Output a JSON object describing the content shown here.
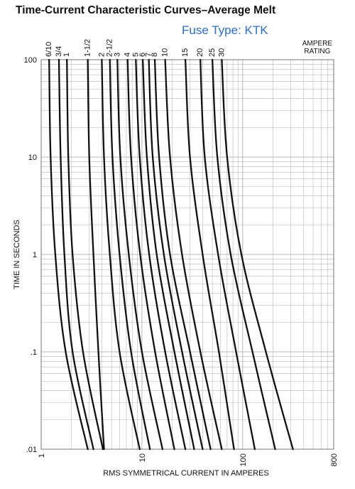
{
  "header": {
    "title": "Time-Current Characteristic Curves–Average Melt",
    "subtitle": "Fuse Type: KTK",
    "rating_line1": "AMPERE",
    "rating_line2": "RATING"
  },
  "chart_data": {
    "type": "line",
    "title": "Time-Current Characteristic Curves–Average Melt",
    "subtitle": "Fuse Type: KTK",
    "xlabel": "RMS SYMMETRICAL CURRENT IN AMPERES",
    "ylabel": "TIME IN SECONDS",
    "xscale": "log",
    "yscale": "log",
    "xlim": [
      1,
      800
    ],
    "ylim": [
      0.01,
      100
    ],
    "x_ticks": [
      {
        "value": 1,
        "label": "1"
      },
      {
        "value": 10,
        "label": "10"
      },
      {
        "value": 100,
        "label": "100"
      },
      {
        "value": 800,
        "label": "800"
      }
    ],
    "y_ticks": [
      {
        "value": 100,
        "label": "100"
      },
      {
        "value": 10,
        "label": "10"
      },
      {
        "value": 1,
        "label": "1"
      },
      {
        "value": 0.1,
        "label": ".1"
      },
      {
        "value": 0.01,
        "label": ".01"
      }
    ],
    "grid": true,
    "legend": "top (ampere rating labels above curves)",
    "line_color": "#111111",
    "grid_color": "#b8b8b8",
    "series": [
      {
        "name": "6/10",
        "points": [
          [
            1.2,
            100
          ],
          [
            1.24,
            10
          ],
          [
            1.38,
            1
          ],
          [
            1.75,
            0.1
          ],
          [
            2.9,
            0.01
          ]
        ]
      },
      {
        "name": "3/4",
        "points": [
          [
            1.5,
            100
          ],
          [
            1.56,
            10
          ],
          [
            1.7,
            1
          ],
          [
            2.05,
            0.1
          ],
          [
            3.3,
            0.01
          ]
        ]
      },
      {
        "name": "1",
        "points": [
          [
            1.8,
            100
          ],
          [
            1.86,
            10
          ],
          [
            2.05,
            1
          ],
          [
            2.6,
            0.1
          ],
          [
            4.1,
            0.01
          ]
        ]
      },
      {
        "name": "1-1/2",
        "points": [
          [
            2.9,
            100
          ],
          [
            3.0,
            10
          ],
          [
            3.3,
            1
          ],
          [
            3.7,
            0.1
          ],
          [
            4.2,
            0.01
          ]
        ]
      },
      {
        "name": "2",
        "points": [
          [
            4.0,
            100
          ],
          [
            4.2,
            10
          ],
          [
            4.8,
            1
          ],
          [
            6.0,
            0.1
          ],
          [
            9.5,
            0.01
          ]
        ]
      },
      {
        "name": "2-1/2",
        "points": [
          [
            4.8,
            100
          ],
          [
            5.1,
            10
          ],
          [
            6.0,
            1
          ],
          [
            7.8,
            0.1
          ],
          [
            12.0,
            0.01
          ]
        ]
      },
      {
        "name": "3",
        "points": [
          [
            5.7,
            100
          ],
          [
            6.1,
            10
          ],
          [
            7.4,
            1
          ],
          [
            10.0,
            0.1
          ],
          [
            16.0,
            0.01
          ]
        ]
      },
      {
        "name": "4",
        "points": [
          [
            7.2,
            100
          ],
          [
            7.8,
            10
          ],
          [
            9.6,
            1
          ],
          [
            13.5,
            0.1
          ],
          [
            21.0,
            0.01
          ]
        ]
      },
      {
        "name": "5",
        "points": [
          [
            8.7,
            100
          ],
          [
            9.5,
            10
          ],
          [
            11.8,
            1
          ],
          [
            17.0,
            0.1
          ],
          [
            27.0,
            0.01
          ]
        ]
      },
      {
        "name": "6",
        "points": [
          [
            10.2,
            100
          ],
          [
            11.2,
            10
          ],
          [
            14.0,
            1
          ],
          [
            21.0,
            0.1
          ],
          [
            33.0,
            0.01
          ]
        ]
      },
      {
        "name": "7",
        "points": [
          [
            11.7,
            100
          ],
          [
            12.8,
            10
          ],
          [
            16.5,
            1
          ],
          [
            25.0,
            0.1
          ],
          [
            40.0,
            0.01
          ]
        ]
      },
      {
        "name": "8",
        "points": [
          [
            13.4,
            100
          ],
          [
            14.8,
            10
          ],
          [
            19.0,
            1
          ],
          [
            30.0,
            0.1
          ],
          [
            48.0,
            0.01
          ]
        ]
      },
      {
        "name": "10",
        "points": [
          [
            17.0,
            100
          ],
          [
            19.0,
            10
          ],
          [
            25.0,
            1
          ],
          [
            38.0,
            0.1
          ],
          [
            62.0,
            0.01
          ]
        ]
      },
      {
        "name": "15",
        "points": [
          [
            27.0,
            100
          ],
          [
            30.0,
            10
          ],
          [
            40.0,
            1
          ],
          [
            58.0,
            0.1
          ],
          [
            82.0,
            0.01
          ]
        ]
      },
      {
        "name": "20",
        "points": [
          [
            38.0,
            100
          ],
          [
            42.0,
            10
          ],
          [
            57.0,
            1
          ],
          [
            86.0,
            0.1
          ],
          [
            132.0,
            0.01
          ]
        ]
      },
      {
        "name": "25",
        "points": [
          [
            50.0,
            100
          ],
          [
            56.0,
            10
          ],
          [
            76.0,
            1
          ],
          [
            125.0,
            0.1
          ],
          [
            210.0,
            0.01
          ]
        ]
      },
      {
        "name": "30",
        "points": [
          [
            62.0,
            100
          ],
          [
            70.0,
            10
          ],
          [
            97.0,
            1
          ],
          [
            170.0,
            0.1
          ],
          [
            315.0,
            0.01
          ]
        ]
      }
    ]
  }
}
